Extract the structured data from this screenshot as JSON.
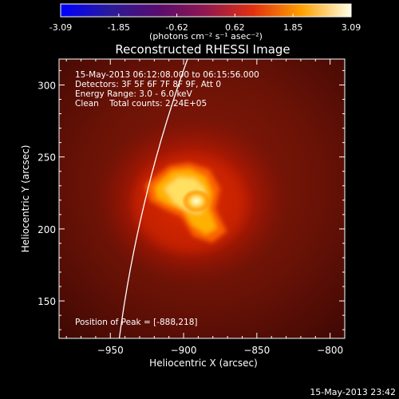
{
  "colorbar": {
    "tick_values": [
      "-3.09",
      "-1.85",
      "-0.62",
      "0.62",
      "1.85",
      "3.09"
    ],
    "unit_label": "(photons cm⁻² s⁻¹ asec⁻²)"
  },
  "figure": {
    "title": "Reconstructed RHESSI Image",
    "info_time": "15-May-2013 06:12:08.000 to 06:15:56.000",
    "info_detectors": "Detectors: 3F 5F 6F 7F 8F 9F, Att 0",
    "info_energy": "Energy Range: 3.0 - 6.0 keV",
    "info_method": "Clean    Total counts: 2.24E+05",
    "peak_text": "Position of Peak = [-888,218]",
    "timestamp": "15-May-2013 23:42"
  },
  "axes": {
    "xlabel": "Heliocentric X (arcsec)",
    "ylabel": "Heliocentric Y (arcsec)",
    "xlim": [
      -985,
      -790
    ],
    "ylim": [
      124,
      318
    ],
    "xticks": [
      -950,
      -900,
      -850,
      -800
    ],
    "yticks": [
      150,
      200,
      250,
      300
    ],
    "xtick_labels": [
      "−950",
      "−900",
      "−850",
      "−800"
    ],
    "ytick_labels": [
      "150",
      "200",
      "250",
      "300"
    ]
  },
  "image_data": {
    "peak": [
      -888,
      218
    ],
    "colors": {
      "background": "#000000",
      "frame": "#ffffff",
      "limb": "#ffffff"
    }
  }
}
